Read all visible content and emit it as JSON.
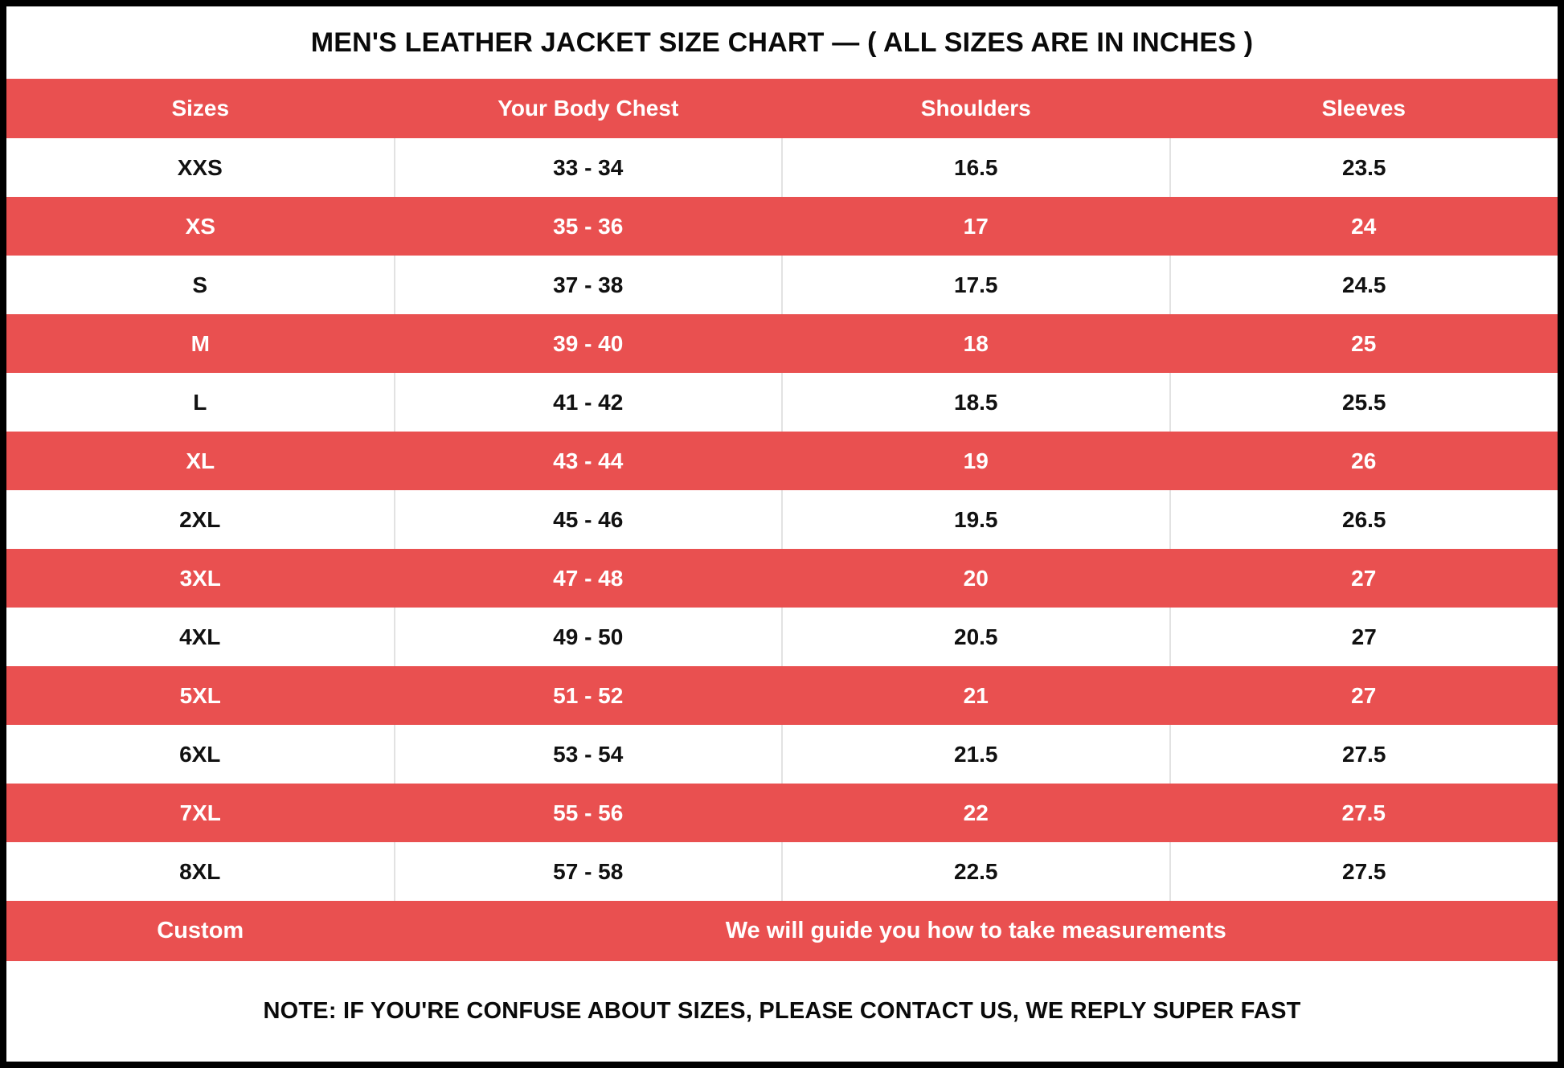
{
  "title": "MEN'S LEATHER JACKET SIZE CHART — ( ALL SIZES ARE IN INCHES )",
  "chart_data": {
    "type": "table",
    "title": "MEN'S LEATHER JACKET SIZE CHART — ( ALL SIZES ARE IN INCHES )",
    "units": "inches",
    "columns": [
      "Sizes",
      "Your Body Chest",
      "Shoulders",
      "Sleeves"
    ],
    "rows": [
      [
        "XXS",
        "33 - 34",
        "16.5",
        "23.5"
      ],
      [
        "XS",
        "35 - 36",
        "17",
        "24"
      ],
      [
        "S",
        "37 - 38",
        "17.5",
        "24.5"
      ],
      [
        "M",
        "39 - 40",
        "18",
        "25"
      ],
      [
        "L",
        "41 - 42",
        "18.5",
        "25.5"
      ],
      [
        "XL",
        "43 - 44",
        "19",
        "26"
      ],
      [
        "2XL",
        "45 - 46",
        "19.5",
        "26.5"
      ],
      [
        "3XL",
        "47 - 48",
        "20",
        "27"
      ],
      [
        "4XL",
        "49 - 50",
        "20.5",
        "27"
      ],
      [
        "5XL",
        "51 - 52",
        "21",
        "27"
      ],
      [
        "6XL",
        "53 - 54",
        "21.5",
        "27.5"
      ],
      [
        "7XL",
        "55 - 56",
        "22",
        "27.5"
      ],
      [
        "8XL",
        "57 - 58",
        "22.5",
        "27.5"
      ]
    ],
    "custom_row": {
      "label": "Custom",
      "message": "We will guide you how to take measurements"
    },
    "note": "NOTE: IF YOU'RE CONFUSE ABOUT SIZES, PLEASE CONTACT US, WE REPLY SUPER FAST",
    "layout": {
      "striping": "alternating white/red starting with white",
      "column_widths_percent": [
        25,
        25,
        25,
        25
      ]
    }
  },
  "colors": {
    "accent_red": "#E95050",
    "text_dark": "#0a0a0a",
    "text_light": "#ffffff",
    "frame_black": "#000000",
    "divider_gray": "#e2e2e2"
  }
}
